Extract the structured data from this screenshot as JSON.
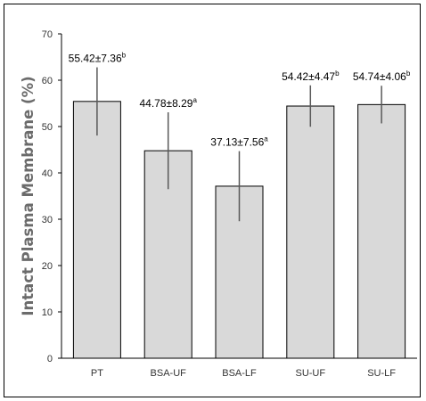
{
  "chart_data": {
    "type": "bar",
    "title": "",
    "xlabel": "",
    "ylabel": "Intact Plasma Membrane (%)",
    "ylim": [
      0,
      70
    ],
    "yticks": [
      0,
      10,
      20,
      30,
      40,
      50,
      60,
      70
    ],
    "grid": false,
    "legend": "none",
    "categories": [
      "PT",
      "BSA-UF",
      "BSA-LF",
      "SU-UF",
      "SU-LF"
    ],
    "values": [
      55.42,
      44.78,
      37.13,
      54.42,
      54.74
    ],
    "errors": [
      7.36,
      8.29,
      7.56,
      4.47,
      4.06
    ],
    "labels": [
      {
        "text": "55.42±7.36",
        "sup": "b"
      },
      {
        "text": "44.78±8.29",
        "sup": "a"
      },
      {
        "text": "37.13±7.56",
        "sup": "a"
      },
      {
        "text": "54.42±4.47",
        "sup": "b"
      },
      {
        "text": "54.74±4.06",
        "sup": "b"
      }
    ],
    "colors": {
      "bar_fill": "#d9d9d9",
      "bar_stroke": "#000000",
      "axis": "#000000",
      "error_bar": "#595959"
    }
  }
}
